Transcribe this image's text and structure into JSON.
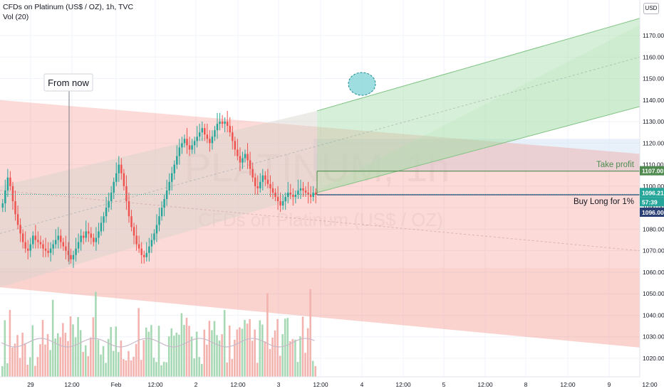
{
  "header": {
    "symbol_line": "CFDs on Platinum (US$ / OZ), 1h, TVC",
    "volume_line": "Vol (20)",
    "currency": "USD"
  },
  "watermark": {
    "symbol": "PLATINUM, 1h",
    "description": "CFDs on Platinum (US$ / OZ)"
  },
  "annotations": {
    "from_now": "From now",
    "take_profit": "Take profit",
    "buy_long": "Buy Long for 1%"
  },
  "price_tags": {
    "take_profit": "1107.00",
    "last_price": "1096.21",
    "countdown": "57:39",
    "entry": "1096.00"
  },
  "colors": {
    "up": "#26a69a",
    "down": "#ef5350",
    "take_profit_line": "#4f8a4f",
    "entry_line": "#2a3f73",
    "red_zone": "#f28b82",
    "green_zone": "#a5dca8",
    "blue_zone": "#d6e6f5"
  },
  "chart_data": {
    "type": "candlestick",
    "timeframe": "1h",
    "y_axis": {
      "ticks": [
        1020,
        1030,
        1040,
        1050,
        1060,
        1070,
        1080,
        1090,
        1100,
        1110,
        1120,
        1130,
        1140,
        1150,
        1160,
        1170
      ],
      "tick_labels": [
        "1020.00",
        "1030.00",
        "1040.00",
        "1050.00",
        "1060.00",
        "1070.00",
        "1080.00",
        "1090.00",
        "1100.00",
        "1110.00",
        "1120.00",
        "1130.00",
        "1140.00",
        "1150.00",
        "1160.00",
        "1170.00"
      ],
      "range": [
        1013,
        1178
      ]
    },
    "x_axis": {
      "tick_labels": [
        "29",
        "12:00",
        "Feb",
        "12:00",
        "2",
        "12:00",
        "3",
        "12:00",
        "4",
        "12:00",
        "5",
        "12:00",
        "8",
        "12:00",
        "9",
        "12:00"
      ]
    },
    "take_profit_level": 1107,
    "entry_level": 1096,
    "last_price": 1096.21,
    "candles_close": [
      1092,
      1098,
      1104,
      1100,
      1093,
      1087,
      1082,
      1078,
      1074,
      1071,
      1070,
      1073,
      1077,
      1075,
      1074,
      1073,
      1071,
      1070,
      1069,
      1071,
      1073,
      1075,
      1077,
      1074,
      1072,
      1070,
      1068,
      1066,
      1068,
      1071,
      1074,
      1077,
      1076,
      1079,
      1078,
      1076,
      1074,
      1076,
      1079,
      1083,
      1086,
      1090,
      1093,
      1097,
      1102,
      1106,
      1110,
      1106,
      1100,
      1093,
      1086,
      1081,
      1077,
      1073,
      1071,
      1068,
      1067,
      1069,
      1072,
      1075,
      1078,
      1082,
      1086,
      1090,
      1094,
      1098,
      1102,
      1106,
      1110,
      1114,
      1118,
      1120,
      1122,
      1119,
      1117,
      1119,
      1121,
      1123,
      1125,
      1127,
      1124,
      1122,
      1120,
      1123,
      1126,
      1129,
      1130,
      1129,
      1130,
      1128,
      1125,
      1121,
      1117,
      1114,
      1111,
      1113,
      1115,
      1112,
      1108,
      1104,
      1100,
      1099,
      1102,
      1105,
      1103,
      1101,
      1099,
      1097,
      1095,
      1093,
      1091,
      1093,
      1095,
      1097,
      1096,
      1095,
      1096,
      1098,
      1099,
      1098,
      1097,
      1096,
      1095,
      1097,
      1096
    ]
  }
}
